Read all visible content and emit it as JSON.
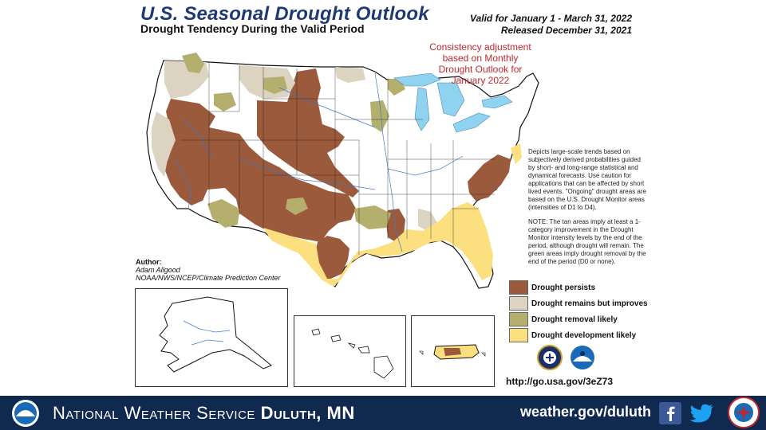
{
  "header": {
    "title": "U.S. Seasonal Drought Outlook",
    "subtitle": "Drought Tendency During the Valid Period",
    "valid": "Valid for January 1 - March 31, 2022",
    "released": "Released December 31, 2021"
  },
  "note": {
    "consistency": "Consistency adjustment based on Monthly Drought Outlook for January 2022"
  },
  "description": {
    "para1": "Depicts large-scale trends based on subjectively derived probabilities guided by short- and long-range statistical and dynamical forecasts. Use caution for applications that can be affected by short lived events. \"Ongoing\" drought areas are based on the U.S. Drought Monitor areas (intensities of D1 to D4).",
    "para2": "NOTE: The tan areas imply at least a 1-category improvement in the Drought Monitor intensity levels by the end of the period, although drought will remain. The green areas imply drought removal by the end of the period (D0 or none)."
  },
  "author": {
    "label": "Author:",
    "name": "Adam Allgood",
    "org": "NOAA/NWS/NCEP/Climate Prediction Center"
  },
  "legend": [
    {
      "label": "Drought persists",
      "color": "#9b5a3c"
    },
    {
      "label": "Drought remains but improves",
      "color": "#ddd3c1"
    },
    {
      "label": "Drought removal likely",
      "color": "#b4af6c"
    },
    {
      "label": "Drought development likely",
      "color": "#fce07f"
    }
  ],
  "logos": [
    "doc-seal-icon",
    "noaa-logo-icon"
  ],
  "url": "http://go.usa.gov/3eZ73",
  "colors": {
    "persist": "#9b5a3c",
    "improve": "#ddd3c1",
    "removal": "#b4af6c",
    "development": "#fce07f",
    "water": "#8fd3f0",
    "footer": "#10294f"
  },
  "footer": {
    "org": "National Weather Service",
    "office": "Duluth, MN",
    "url": "weather.gov/duluth"
  }
}
